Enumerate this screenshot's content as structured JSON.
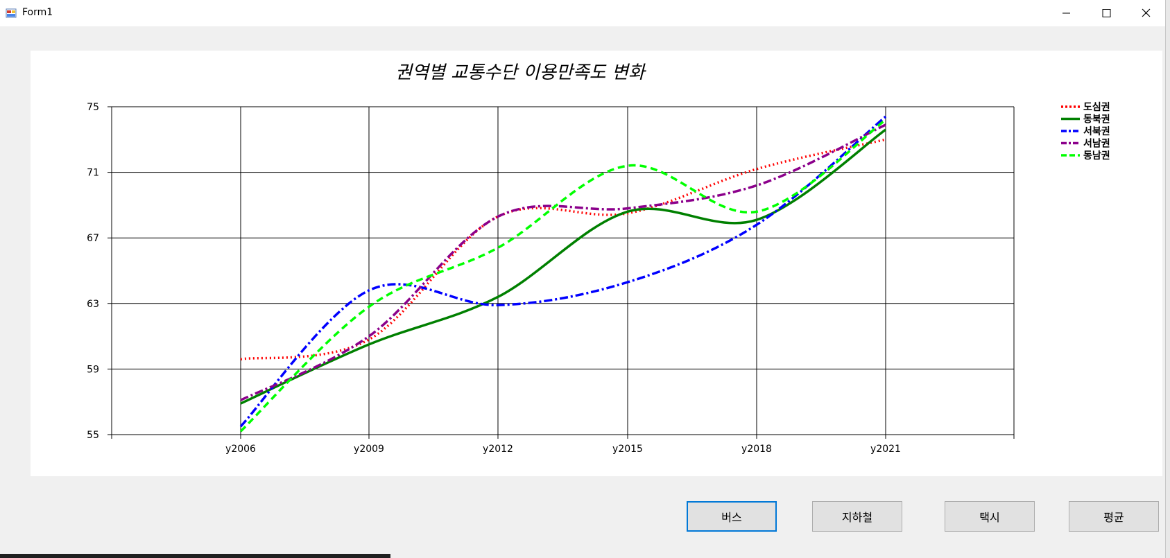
{
  "window": {
    "title": "Form1",
    "accent": "#0078d7"
  },
  "buttons": {
    "bus": "버스",
    "subway": "지하철",
    "taxi": "택시",
    "average": "평균"
  },
  "chart_data": {
    "type": "line",
    "title": "권역별 교통수단 이용만족도 변화",
    "categories": [
      "y2006",
      "y2009",
      "y2012",
      "y2015",
      "y2018",
      "y2021"
    ],
    "ylim": [
      55,
      75
    ],
    "yticks": [
      "75",
      "71",
      "67",
      "63",
      "59",
      "55"
    ],
    "grid": true,
    "legend_position": "top-right",
    "series": [
      {
        "name": "도심권",
        "color": "#ff0000",
        "style": "dotted",
        "values": [
          59.6,
          60.8,
          68.3,
          68.5,
          71.2,
          73.0
        ]
      },
      {
        "name": "동북권",
        "color": "#008000",
        "style": "solid",
        "values": [
          56.9,
          60.5,
          63.4,
          68.6,
          68.1,
          73.6
        ]
      },
      {
        "name": "서북권",
        "color": "#0000ff",
        "style": "dashdot",
        "values": [
          55.5,
          63.8,
          62.9,
          64.3,
          67.8,
          74.4
        ]
      },
      {
        "name": "서남권",
        "color": "#8b008b",
        "style": "dashdot",
        "values": [
          57.1,
          61.0,
          68.3,
          68.8,
          70.2,
          73.9
        ]
      },
      {
        "name": "동남권",
        "color": "#00ff00",
        "style": "dashed",
        "values": [
          55.2,
          62.8,
          66.4,
          71.4,
          68.6,
          74.2
        ]
      }
    ]
  }
}
